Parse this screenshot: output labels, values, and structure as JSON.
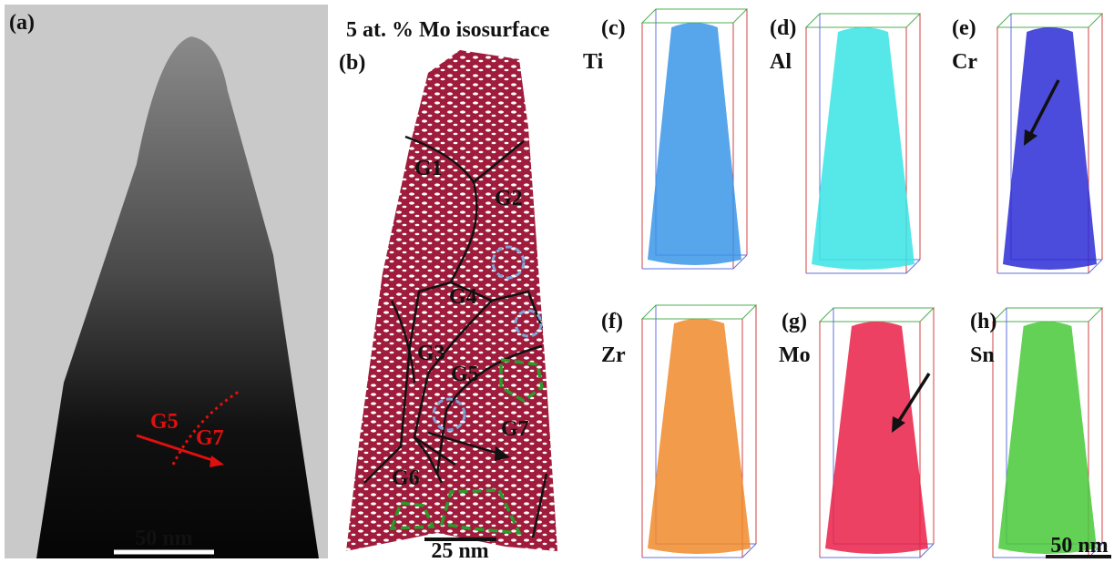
{
  "panel_a": {
    "label": "(a)",
    "grain_labels": [
      "G5",
      "G7"
    ],
    "scale_bar": "50 nm"
  },
  "panel_b": {
    "title": "5 at. % Mo isosurface",
    "label": "(b)",
    "grain_labels": [
      "G1",
      "G2",
      "G3",
      "G4",
      "G5",
      "G6",
      "G7"
    ],
    "scale_bar": "25 nm"
  },
  "element_maps": [
    {
      "label": "(c)",
      "element": "Ti"
    },
    {
      "label": "(d)",
      "element": "Al"
    },
    {
      "label": "(e)",
      "element": "Cr"
    },
    {
      "label": "(f)",
      "element": "Zr"
    },
    {
      "label": "(g)",
      "element": "Mo"
    },
    {
      "label": "(h)",
      "element": "Sn"
    }
  ],
  "element_scale_bar": "50 nm"
}
